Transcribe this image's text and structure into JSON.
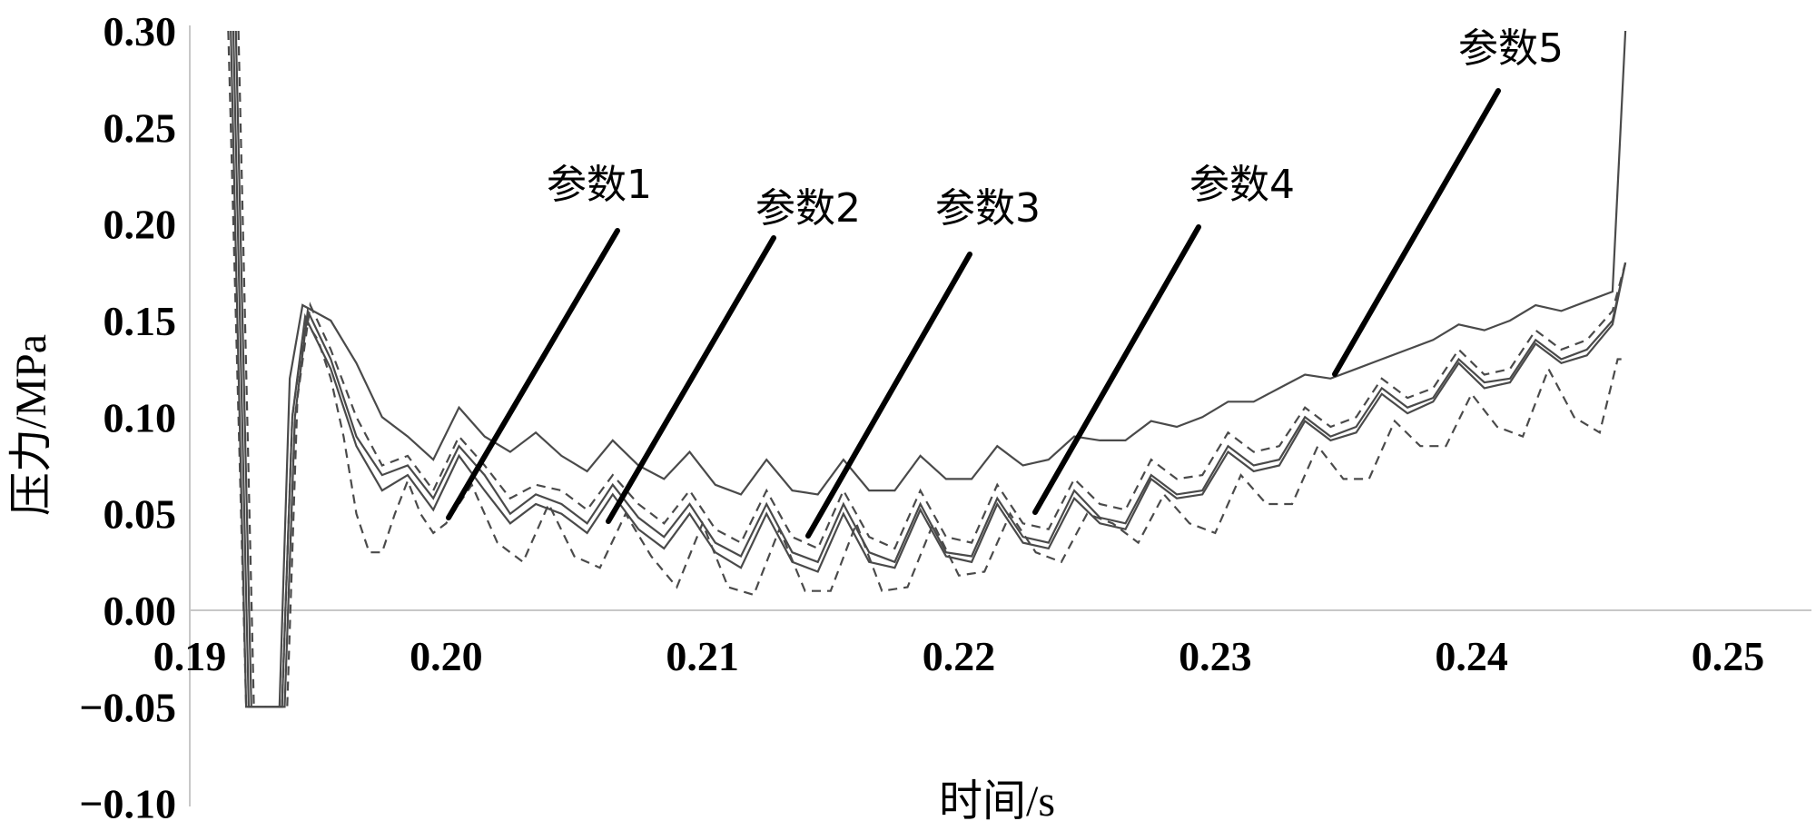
{
  "chart_data": {
    "type": "line",
    "title": "",
    "xlabel": "时间/s",
    "ylabel": "压力/MPa",
    "xlim": [
      0.19,
      0.25
    ],
    "ylim": [
      -0.1,
      0.3
    ],
    "x_ticks": [
      "0.19",
      "0.20",
      "0.21",
      "0.22",
      "0.23",
      "0.24",
      "0.25"
    ],
    "y_ticks": [
      "0.30",
      "0.25",
      "0.20",
      "0.15",
      "0.10",
      "0.05",
      "0.00",
      "−0.05",
      "−0.10"
    ],
    "grid": false,
    "series": [
      {
        "name": "参数1",
        "style": "dashed",
        "x": [
          0.1915,
          0.1922,
          0.193,
          0.1936,
          0.194,
          0.1945,
          0.195,
          0.1955,
          0.196,
          0.1965,
          0.197,
          0.1975,
          0.198,
          0.1985,
          0.199,
          0.1995,
          0.2,
          0.201,
          0.202,
          0.203,
          0.204,
          0.205,
          0.206,
          0.207,
          0.208,
          0.209,
          0.21,
          0.211,
          0.212,
          0.213,
          0.214,
          0.215,
          0.216,
          0.217,
          0.218,
          0.219,
          0.22,
          0.221,
          0.222,
          0.223,
          0.224,
          0.225,
          0.226,
          0.227,
          0.228,
          0.229,
          0.23,
          0.231,
          0.232,
          0.233,
          0.234,
          0.235,
          0.236,
          0.237,
          0.238,
          0.239,
          0.24,
          0.241,
          0.242,
          0.243,
          0.244,
          0.245,
          0.2457,
          0.246
        ],
        "y": [
          0.3,
          -0.05,
          -0.05,
          -0.05,
          0.1,
          0.15,
          0.14,
          0.12,
          0.09,
          0.05,
          0.03,
          0.03,
          0.05,
          0.067,
          0.05,
          0.04,
          0.045,
          0.065,
          0.035,
          0.025,
          0.055,
          0.028,
          0.022,
          0.05,
          0.028,
          0.012,
          0.045,
          0.012,
          0.008,
          0.042,
          0.01,
          0.01,
          0.045,
          0.01,
          0.012,
          0.045,
          0.018,
          0.02,
          0.05,
          0.03,
          0.025,
          0.05,
          0.045,
          0.035,
          0.06,
          0.045,
          0.04,
          0.07,
          0.055,
          0.055,
          0.085,
          0.068,
          0.068,
          0.098,
          0.085,
          0.085,
          0.112,
          0.095,
          0.09,
          0.125,
          0.1,
          0.092,
          0.13,
          0.13
        ]
      },
      {
        "name": "参数2",
        "style": "solid",
        "x": [
          0.1918,
          0.1924,
          0.1931,
          0.1937,
          0.1941,
          0.1946,
          0.1955,
          0.1965,
          0.1975,
          0.1985,
          0.1995,
          0.2005,
          0.2015,
          0.2025,
          0.2035,
          0.2045,
          0.2055,
          0.2065,
          0.2075,
          0.2085,
          0.2095,
          0.2105,
          0.2115,
          0.2125,
          0.2135,
          0.2145,
          0.2155,
          0.2165,
          0.2175,
          0.2185,
          0.2195,
          0.2205,
          0.2215,
          0.2225,
          0.2235,
          0.2245,
          0.2255,
          0.2265,
          0.2275,
          0.2285,
          0.2295,
          0.2305,
          0.2315,
          0.2325,
          0.2335,
          0.2345,
          0.2355,
          0.2365,
          0.2375,
          0.2385,
          0.2395,
          0.2405,
          0.2415,
          0.2425,
          0.2435,
          0.2445,
          0.2455,
          0.246
        ],
        "y": [
          0.3,
          -0.05,
          -0.05,
          -0.05,
          0.1,
          0.155,
          0.13,
          0.09,
          0.07,
          0.075,
          0.058,
          0.085,
          0.07,
          0.05,
          0.06,
          0.055,
          0.045,
          0.065,
          0.048,
          0.038,
          0.055,
          0.035,
          0.028,
          0.055,
          0.03,
          0.025,
          0.055,
          0.03,
          0.025,
          0.055,
          0.03,
          0.028,
          0.058,
          0.038,
          0.035,
          0.062,
          0.048,
          0.045,
          0.07,
          0.06,
          0.062,
          0.085,
          0.075,
          0.078,
          0.1,
          0.09,
          0.095,
          0.115,
          0.105,
          0.11,
          0.13,
          0.118,
          0.12,
          0.14,
          0.13,
          0.135,
          0.15,
          0.18
        ]
      },
      {
        "name": "参数3",
        "style": "dashdot",
        "x": [
          0.1919,
          0.1925,
          0.1932,
          0.1938,
          0.1942,
          0.1947,
          0.1955,
          0.1965,
          0.1975,
          0.1985,
          0.1995,
          0.2005,
          0.2015,
          0.2025,
          0.2035,
          0.2045,
          0.2055,
          0.2065,
          0.2075,
          0.2085,
          0.2095,
          0.2105,
          0.2115,
          0.2125,
          0.2135,
          0.2145,
          0.2155,
          0.2165,
          0.2175,
          0.2185,
          0.2195,
          0.2205,
          0.2215,
          0.2225,
          0.2235,
          0.2245,
          0.2255,
          0.2265,
          0.2275,
          0.2285,
          0.2295,
          0.2305,
          0.2315,
          0.2325,
          0.2335,
          0.2345,
          0.2355,
          0.2365,
          0.2375,
          0.2385,
          0.2395,
          0.2405,
          0.2415,
          0.2425,
          0.2435,
          0.2445,
          0.2455,
          0.246
        ],
        "y": [
          0.3,
          -0.05,
          -0.05,
          -0.05,
          0.11,
          0.158,
          0.135,
          0.1,
          0.075,
          0.08,
          0.062,
          0.09,
          0.075,
          0.058,
          0.065,
          0.062,
          0.052,
          0.07,
          0.055,
          0.045,
          0.062,
          0.042,
          0.035,
          0.062,
          0.038,
          0.032,
          0.062,
          0.038,
          0.032,
          0.062,
          0.038,
          0.035,
          0.065,
          0.045,
          0.042,
          0.068,
          0.055,
          0.052,
          0.078,
          0.068,
          0.07,
          0.092,
          0.082,
          0.085,
          0.105,
          0.095,
          0.1,
          0.12,
          0.11,
          0.115,
          0.135,
          0.122,
          0.125,
          0.145,
          0.135,
          0.14,
          0.155,
          0.18
        ]
      },
      {
        "name": "参数4",
        "style": "solid",
        "x": [
          0.1917,
          0.1923,
          0.193,
          0.1936,
          0.194,
          0.1945,
          0.1955,
          0.1965,
          0.1975,
          0.1985,
          0.1995,
          0.2005,
          0.2015,
          0.2025,
          0.2035,
          0.2045,
          0.2055,
          0.2065,
          0.2075,
          0.2085,
          0.2095,
          0.2105,
          0.2115,
          0.2125,
          0.2135,
          0.2145,
          0.2155,
          0.2165,
          0.2175,
          0.2185,
          0.2195,
          0.2205,
          0.2215,
          0.2225,
          0.2235,
          0.2245,
          0.2255,
          0.2265,
          0.2275,
          0.2285,
          0.2295,
          0.2305,
          0.2315,
          0.2325,
          0.2335,
          0.2345,
          0.2355,
          0.2365,
          0.2375,
          0.2385,
          0.2395,
          0.2405,
          0.2415,
          0.2425,
          0.2435,
          0.2445,
          0.2455,
          0.246
        ],
        "y": [
          0.3,
          -0.05,
          -0.05,
          -0.05,
          0.1,
          0.152,
          0.125,
          0.085,
          0.062,
          0.07,
          0.052,
          0.08,
          0.062,
          0.045,
          0.055,
          0.05,
          0.04,
          0.06,
          0.042,
          0.032,
          0.05,
          0.03,
          0.022,
          0.05,
          0.025,
          0.02,
          0.05,
          0.025,
          0.022,
          0.052,
          0.028,
          0.025,
          0.055,
          0.035,
          0.032,
          0.058,
          0.045,
          0.042,
          0.068,
          0.058,
          0.06,
          0.082,
          0.072,
          0.075,
          0.098,
          0.088,
          0.092,
          0.112,
          0.102,
          0.108,
          0.128,
          0.115,
          0.118,
          0.138,
          0.128,
          0.132,
          0.148,
          0.18
        ]
      },
      {
        "name": "参数5",
        "style": "solid",
        "x": [
          0.1916,
          0.1922,
          0.193,
          0.1935,
          0.1939,
          0.1944,
          0.1955,
          0.1965,
          0.1975,
          0.1985,
          0.1995,
          0.2005,
          0.2015,
          0.2025,
          0.2035,
          0.2045,
          0.2055,
          0.2065,
          0.2075,
          0.2085,
          0.2095,
          0.2105,
          0.2115,
          0.2125,
          0.2135,
          0.2145,
          0.2155,
          0.2165,
          0.2175,
          0.2185,
          0.2195,
          0.2205,
          0.2215,
          0.2225,
          0.2235,
          0.2245,
          0.2255,
          0.2265,
          0.2275,
          0.2285,
          0.2295,
          0.2305,
          0.2315,
          0.2325,
          0.2335,
          0.2345,
          0.2355,
          0.2365,
          0.2375,
          0.2385,
          0.2395,
          0.2405,
          0.2415,
          0.2425,
          0.2435,
          0.2445,
          0.2455,
          0.246
        ],
        "y": [
          0.3,
          -0.05,
          -0.05,
          -0.05,
          0.12,
          0.158,
          0.15,
          0.128,
          0.1,
          0.09,
          0.078,
          0.105,
          0.09,
          0.082,
          0.092,
          0.08,
          0.072,
          0.088,
          0.075,
          0.068,
          0.082,
          0.065,
          0.06,
          0.078,
          0.062,
          0.06,
          0.078,
          0.062,
          0.062,
          0.08,
          0.068,
          0.068,
          0.085,
          0.075,
          0.078,
          0.09,
          0.088,
          0.088,
          0.098,
          0.095,
          0.1,
          0.108,
          0.108,
          0.115,
          0.122,
          0.12,
          0.125,
          0.13,
          0.135,
          0.14,
          0.148,
          0.145,
          0.15,
          0.158,
          0.155,
          0.16,
          0.165,
          0.3
        ]
      }
    ],
    "annotations": [
      {
        "text": "参数1"
      },
      {
        "text": "参数2"
      },
      {
        "text": "参数3"
      },
      {
        "text": "参数4"
      },
      {
        "text": "参数5"
      }
    ]
  }
}
